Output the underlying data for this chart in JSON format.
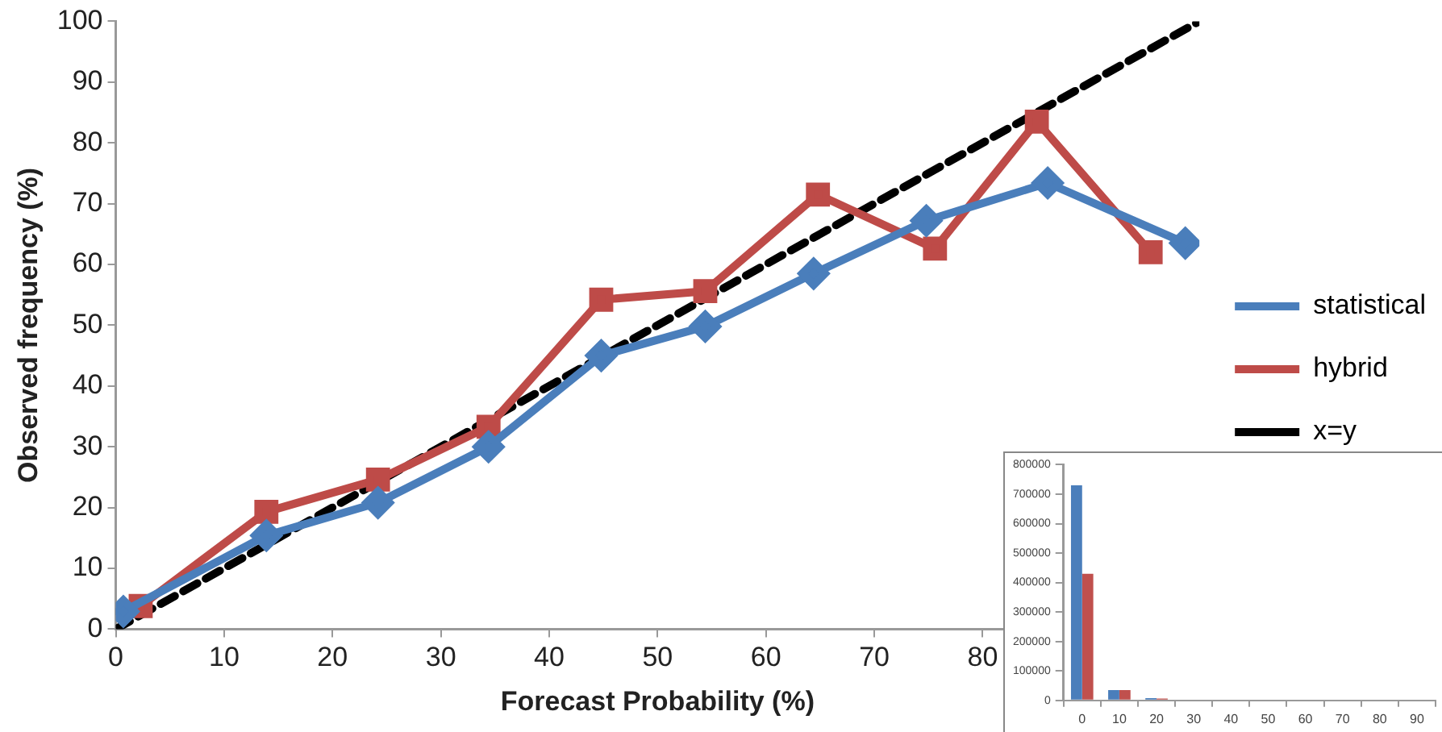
{
  "chart_data": [
    {
      "type": "line",
      "xlabel": "Forecast Probability (%)",
      "ylabel": "Observed frequency (%)",
      "xlim": [
        0,
        100
      ],
      "xticks": [
        0,
        10,
        20,
        30,
        40,
        50,
        60,
        70,
        80
      ],
      "ylim": [
        0,
        100
      ],
      "yticks": [
        0,
        10,
        20,
        30,
        40,
        50,
        60,
        70,
        80,
        90,
        100
      ],
      "grid": false,
      "legend": "right",
      "series": [
        {
          "name": "statistical",
          "color": "#4a7ebb",
          "marker": "diamond",
          "line_style": "solid",
          "x": [
            0.7,
            13.9,
            24.2,
            34.4,
            44.8,
            54.4,
            64.4,
            74.8,
            86,
            98.7
          ],
          "values": [
            2.9,
            15.4,
            20.8,
            30,
            45,
            49.8,
            58.5,
            67.2,
            73.4,
            63.5
          ]
        },
        {
          "name": "hybrid",
          "color": "#be4b48",
          "marker": "square",
          "line_style": "solid",
          "x": [
            2.3,
            13.9,
            24.2,
            34.4,
            44.8,
            54.4,
            64.8,
            75.6,
            85,
            95.5
          ],
          "values": [
            3.8,
            19.3,
            24.6,
            33.3,
            54.2,
            55.6,
            71.5,
            62.6,
            83.5,
            62
          ]
        },
        {
          "name": "x=y",
          "color": "#000000",
          "marker": "none",
          "line_style": "dashed",
          "x": [
            0,
            100
          ],
          "values": [
            0,
            100
          ]
        }
      ]
    },
    {
      "type": "bar",
      "categories": [
        "0",
        "10",
        "20",
        "30",
        "40",
        "50",
        "60",
        "70",
        "80",
        "90"
      ],
      "ylim": [
        0,
        800000
      ],
      "yticks": [
        0,
        100000,
        200000,
        300000,
        400000,
        500000,
        600000,
        700000,
        800000
      ],
      "grid": false,
      "legend": false,
      "series": [
        {
          "color": "#4a7ebb",
          "values": [
            730000,
            35000,
            8000,
            0,
            0,
            0,
            0,
            0,
            0,
            0
          ]
        },
        {
          "color": "#c0504d",
          "values": [
            430000,
            35000,
            6000,
            0,
            0,
            0,
            0,
            0,
            0,
            0
          ]
        }
      ]
    }
  ]
}
